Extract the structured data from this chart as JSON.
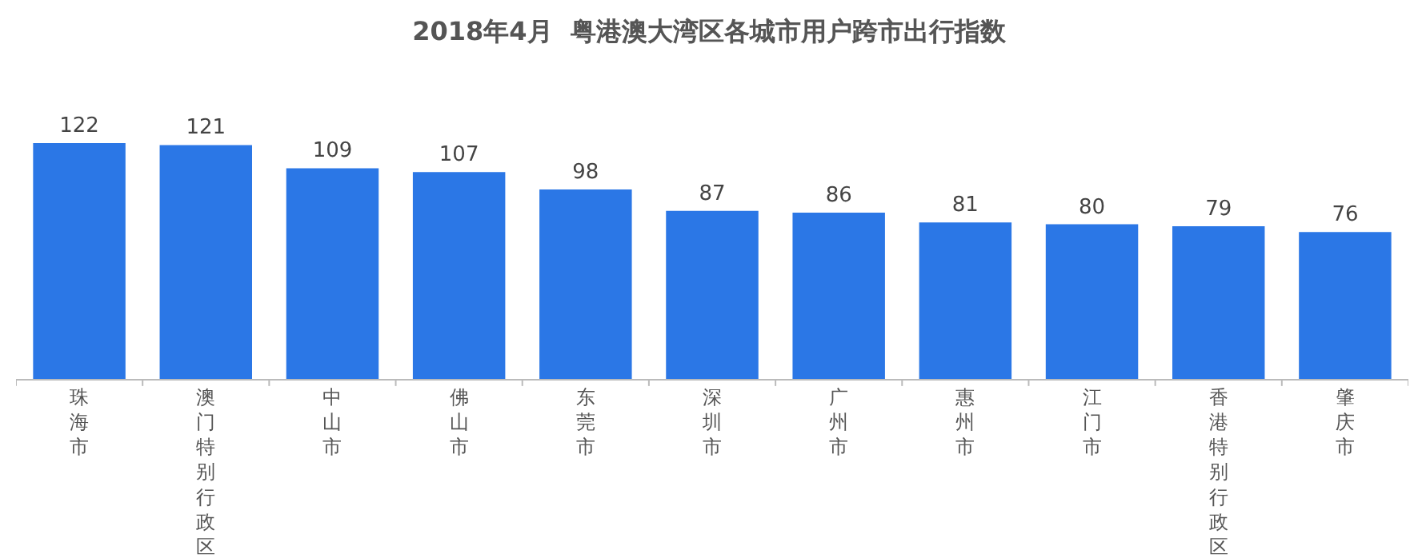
{
  "chart_data": {
    "type": "bar",
    "title": "2018年4月  粤港澳大湾区各城市用户跨市出行指数",
    "categories": [
      "珠海市",
      "澳门特别行政区",
      "中山市",
      "佛山市",
      "东莞市",
      "深圳市",
      "广州市",
      "惠州市",
      "江门市",
      "香港特别行政区",
      "肇庆市"
    ],
    "values": [
      122,
      121,
      109,
      107,
      98,
      87,
      86,
      81,
      80,
      79,
      76
    ],
    "color": "#2b77e6",
    "data_labels": true
  }
}
